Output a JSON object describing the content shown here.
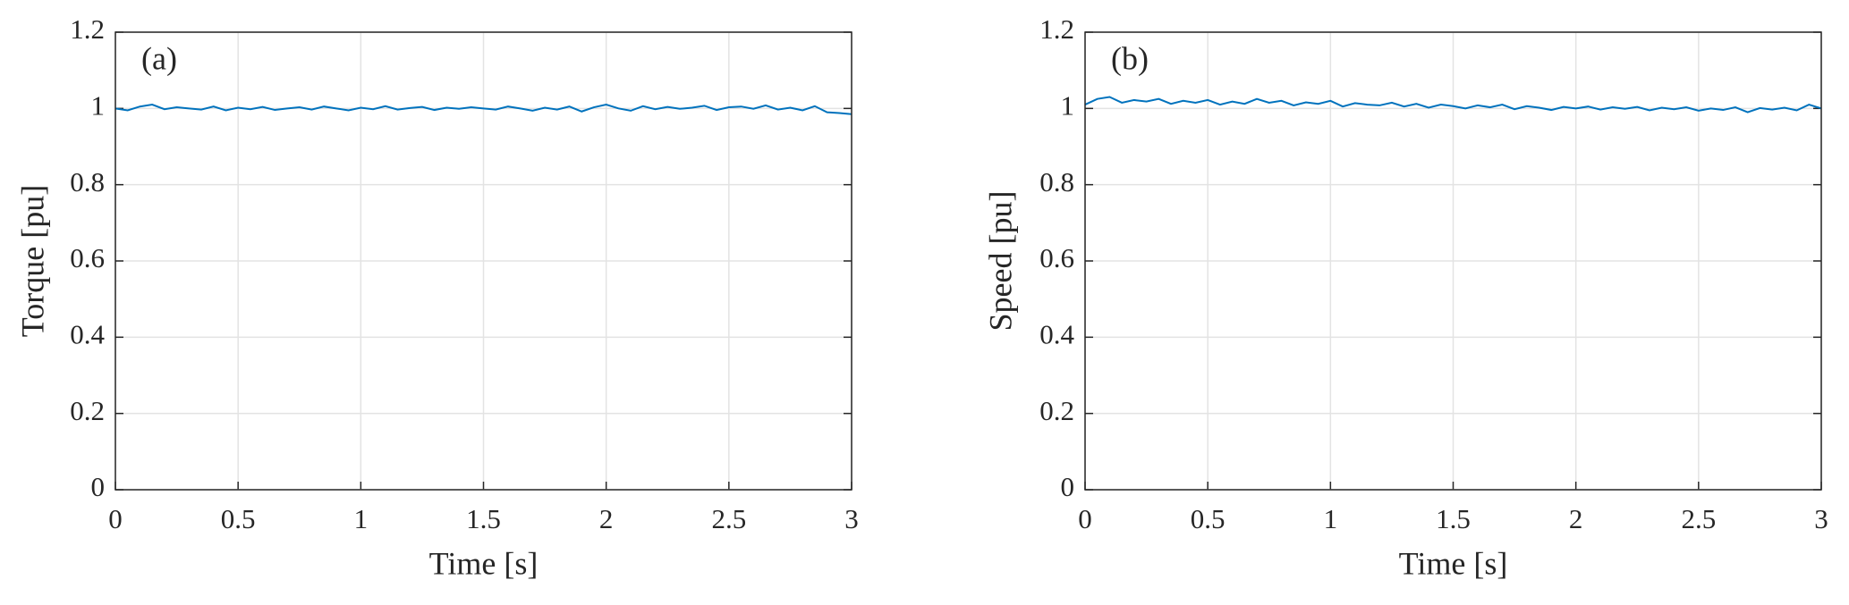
{
  "chart_data": [
    {
      "type": "line",
      "annotation": "(a)",
      "x_label": "Time [s]",
      "y_label": "Torque [pu]",
      "color": "#0072bd",
      "grid": true,
      "xlim": [
        0,
        3
      ],
      "xticks": [
        0,
        0.5,
        1,
        1.5,
        2,
        2.5,
        3
      ],
      "ylim": [
        0,
        1.2
      ],
      "yticks": [
        0,
        0.2,
        0.4,
        0.6,
        0.8,
        1,
        1.2
      ],
      "x": [
        0,
        0.05,
        0.1,
        0.15,
        0.2,
        0.25,
        0.3,
        0.35,
        0.4,
        0.45,
        0.5,
        0.55,
        0.6,
        0.65,
        0.7,
        0.75,
        0.8,
        0.85,
        0.9,
        0.95,
        1,
        1.05,
        1.1,
        1.15,
        1.2,
        1.25,
        1.3,
        1.35,
        1.4,
        1.45,
        1.5,
        1.55,
        1.6,
        1.65,
        1.7,
        1.75,
        1.8,
        1.85,
        1.9,
        1.95,
        2,
        2.05,
        2.1,
        2.15,
        2.2,
        2.25,
        2.3,
        2.35,
        2.4,
        2.45,
        2.5,
        2.55,
        2.6,
        2.65,
        2.7,
        2.75,
        2.8,
        2.85,
        2.9,
        2.95,
        3
      ],
      "values": [
        1.0,
        0.995,
        1.005,
        1.01,
        0.998,
        1.003,
        1.0,
        0.997,
        1.005,
        0.995,
        1.002,
        0.998,
        1.004,
        0.996,
        1.0,
        1.003,
        0.997,
        1.005,
        1.0,
        0.995,
        1.002,
        0.998,
        1.006,
        0.997,
        1.001,
        1.004,
        0.996,
        1.002,
        0.999,
        1.003,
        1.0,
        0.997,
        1.005,
        1.0,
        0.994,
        1.002,
        0.997,
        1.005,
        0.992,
        1.003,
        1.01,
        1.0,
        0.994,
        1.006,
        0.998,
        1.004,
        0.999,
        1.002,
        1.007,
        0.996,
        1.003,
        1.005,
        0.999,
        1.008,
        0.997,
        1.002,
        0.995,
        1.006,
        0.99,
        0.988,
        0.985
      ]
    },
    {
      "type": "line",
      "annotation": "(b)",
      "x_label": "Time [s]",
      "y_label": "Speed [pu]",
      "color": "#0072bd",
      "grid": true,
      "xlim": [
        0,
        3
      ],
      "xticks": [
        0,
        0.5,
        1,
        1.5,
        2,
        2.5,
        3
      ],
      "ylim": [
        0,
        1.2
      ],
      "yticks": [
        0,
        0.2,
        0.4,
        0.6,
        0.8,
        1,
        1.2
      ],
      "x": [
        0,
        0.05,
        0.1,
        0.15,
        0.2,
        0.25,
        0.3,
        0.35,
        0.4,
        0.45,
        0.5,
        0.55,
        0.6,
        0.65,
        0.7,
        0.75,
        0.8,
        0.85,
        0.9,
        0.95,
        1,
        1.05,
        1.1,
        1.15,
        1.2,
        1.25,
        1.3,
        1.35,
        1.4,
        1.45,
        1.5,
        1.55,
        1.6,
        1.65,
        1.7,
        1.75,
        1.8,
        1.85,
        1.9,
        1.95,
        2,
        2.05,
        2.1,
        2.15,
        2.2,
        2.25,
        2.3,
        2.35,
        2.4,
        2.45,
        2.5,
        2.55,
        2.6,
        2.65,
        2.7,
        2.75,
        2.8,
        2.85,
        2.9,
        2.95,
        3
      ],
      "values": [
        1.01,
        1.025,
        1.03,
        1.015,
        1.022,
        1.018,
        1.025,
        1.012,
        1.02,
        1.015,
        1.022,
        1.01,
        1.018,
        1.012,
        1.025,
        1.015,
        1.02,
        1.008,
        1.016,
        1.012,
        1.02,
        1.005,
        1.014,
        1.01,
        1.008,
        1.015,
        1.005,
        1.012,
        1.002,
        1.01,
        1.006,
        1.0,
        1.008,
        1.003,
        1.01,
        0.998,
        1.006,
        1.002,
        0.996,
        1.004,
        1.0,
        1.005,
        0.997,
        1.003,
        0.999,
        1.004,
        0.995,
        1.002,
        0.998,
        1.003,
        0.994,
        1.0,
        0.996,
        1.003,
        0.99,
        1.001,
        0.997,
        1.002,
        0.995,
        1.01,
        1.0
      ]
    }
  ]
}
